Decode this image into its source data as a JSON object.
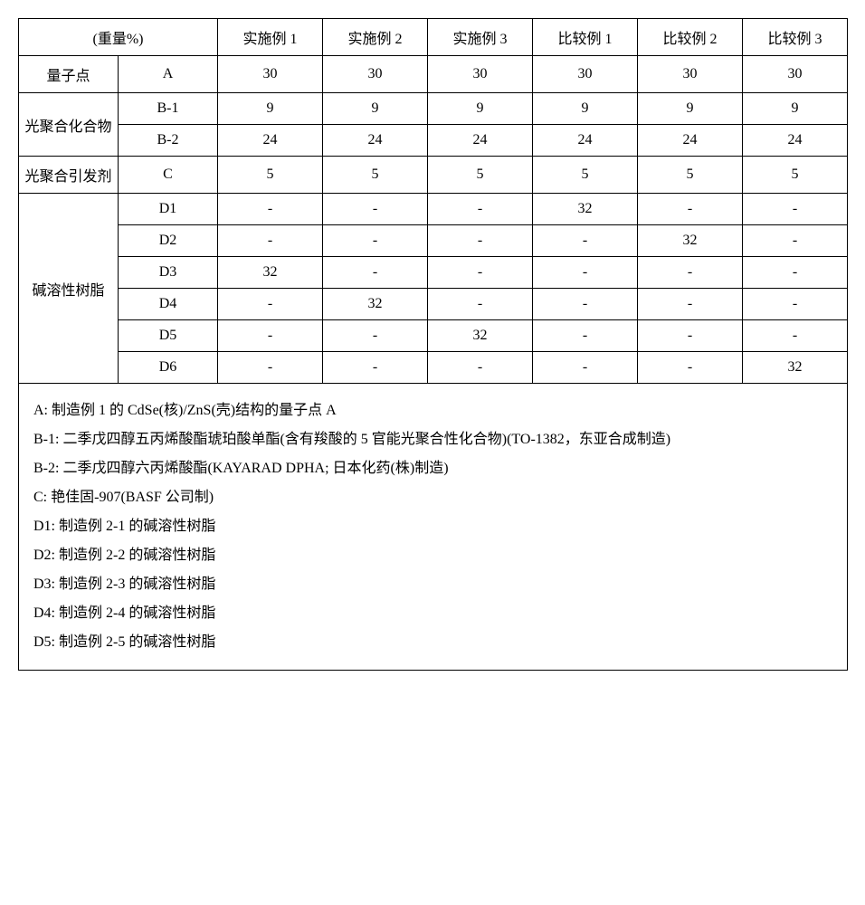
{
  "header": {
    "units": "(重量%)",
    "cols": [
      "实施例 1",
      "实施例 2",
      "实施例 3",
      "比较例 1",
      "比较例 2",
      "比较例 3"
    ]
  },
  "rows": {
    "qdot": {
      "cat": "量子点",
      "sub": "A",
      "v": [
        "30",
        "30",
        "30",
        "30",
        "30",
        "30"
      ]
    },
    "photo1": {
      "cat": "光聚合化合物",
      "sub": "B-1",
      "v": [
        "9",
        "9",
        "9",
        "9",
        "9",
        "9"
      ]
    },
    "photo2": {
      "sub": "B-2",
      "v": [
        "24",
        "24",
        "24",
        "24",
        "24",
        "24"
      ]
    },
    "initiator": {
      "cat": "光聚合引发剂",
      "sub": "C",
      "v": [
        "5",
        "5",
        "5",
        "5",
        "5",
        "5"
      ]
    },
    "resin1": {
      "cat": "碱溶性树脂",
      "sub": "D1",
      "v": [
        "-",
        "-",
        "-",
        "32",
        "-",
        "-"
      ]
    },
    "resin2": {
      "sub": "D2",
      "v": [
        "-",
        "-",
        "-",
        "-",
        "32",
        "-"
      ]
    },
    "resin3": {
      "sub": "D3",
      "v": [
        "32",
        "-",
        "-",
        "-",
        "-",
        "-"
      ]
    },
    "resin4": {
      "sub": "D4",
      "v": [
        "-",
        "32",
        "-",
        "-",
        "-",
        "-"
      ]
    },
    "resin5": {
      "sub": "D5",
      "v": [
        "-",
        "-",
        "32",
        "-",
        "-",
        "-"
      ]
    },
    "resin6": {
      "sub": "D6",
      "v": [
        "-",
        "-",
        "-",
        "-",
        "-",
        "32"
      ]
    }
  },
  "notes": [
    "A:   制造例 1 的 CdSe(核)/ZnS(壳)结构的量子点 A",
    "B-1:  二季戊四醇五丙烯酸酯琥珀酸单酯(含有羧酸的 5 官能光聚合性化合物)(TO-1382，东亚合成制造)",
    "B-2:  二季戊四醇六丙烯酸酯(KAYARAD DPHA;   日本化药(株)制造)",
    "C:   艳佳固-907(BASF 公司制)",
    "D1:  制造例 2-1 的碱溶性树脂",
    "D2:  制造例 2-2 的碱溶性树脂",
    "D3:  制造例 2-3 的碱溶性树脂",
    "D4:  制造例 2-4 的碱溶性树脂",
    "D5:  制造例 2-5 的碱溶性树脂"
  ],
  "styling": {
    "font_family": "SimSun",
    "font_size_pt": 12,
    "border_color": "#000000",
    "background_color": "#ffffff",
    "text_align_data": "center",
    "text_align_notes": "left",
    "line_height_notes": 2.0
  }
}
